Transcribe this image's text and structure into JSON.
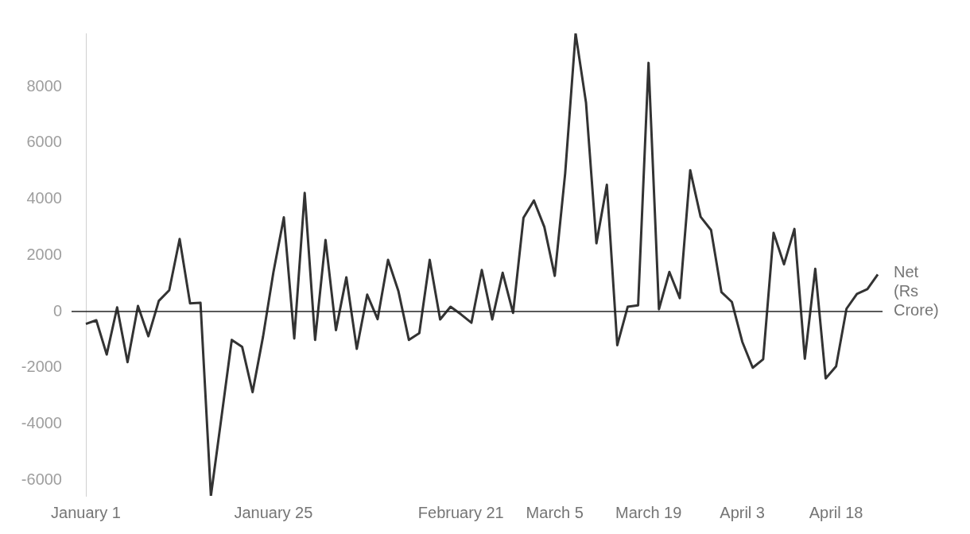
{
  "chart_data": {
    "type": "line",
    "categories": [
      "January 1",
      null,
      null,
      null,
      null,
      null,
      null,
      null,
      null,
      null,
      null,
      null,
      null,
      null,
      null,
      null,
      null,
      null,
      "January 25",
      null,
      null,
      null,
      null,
      null,
      null,
      null,
      null,
      null,
      null,
      null,
      null,
      null,
      null,
      null,
      null,
      null,
      "February 21",
      null,
      null,
      null,
      null,
      null,
      null,
      null,
      null,
      "March 5",
      null,
      null,
      null,
      null,
      null,
      null,
      null,
      null,
      "March 19",
      null,
      null,
      null,
      null,
      null,
      null,
      null,
      null,
      "April 3",
      null,
      null,
      null,
      null,
      null,
      null,
      null,
      null,
      "April 18",
      null,
      null,
      null,
      null
    ],
    "series": [
      {
        "name": "Net (Rs Crore)",
        "color": "#333333",
        "values": [
          -440,
          -310,
          -1530,
          150,
          -1800,
          200,
          -880,
          380,
          760,
          2580,
          290,
          310,
          -6560,
          -3800,
          -1010,
          -1260,
          -2870,
          -900,
          1400,
          3350,
          -960,
          4220,
          -1010,
          2550,
          -660,
          1220,
          -1330,
          600,
          -270,
          1840,
          720,
          -1010,
          -770,
          1840,
          -280,
          170,
          -100,
          -400,
          1480,
          -280,
          1380,
          -50,
          3340,
          3950,
          3010,
          1270,
          4920,
          9900,
          7430,
          2430,
          4510,
          -1200,
          170,
          220,
          8850,
          80,
          1410,
          480,
          5030,
          3370,
          2900,
          690,
          340,
          -1080,
          -2000,
          -1700,
          2800,
          1680,
          2940,
          -1680,
          1520,
          -2380,
          -1950,
          100,
          630,
          800,
          1320
        ]
      }
    ],
    "ylim": [
      -6560,
      9900
    ],
    "yticks": [
      -6000,
      -4000,
      -2000,
      0,
      2000,
      4000,
      6000,
      8000
    ],
    "ref_lines": [
      {
        "axis": "y",
        "value": 0,
        "color": "#222222"
      }
    ],
    "marker": "none",
    "line_style": "solid",
    "grid": false,
    "legend": false
  }
}
